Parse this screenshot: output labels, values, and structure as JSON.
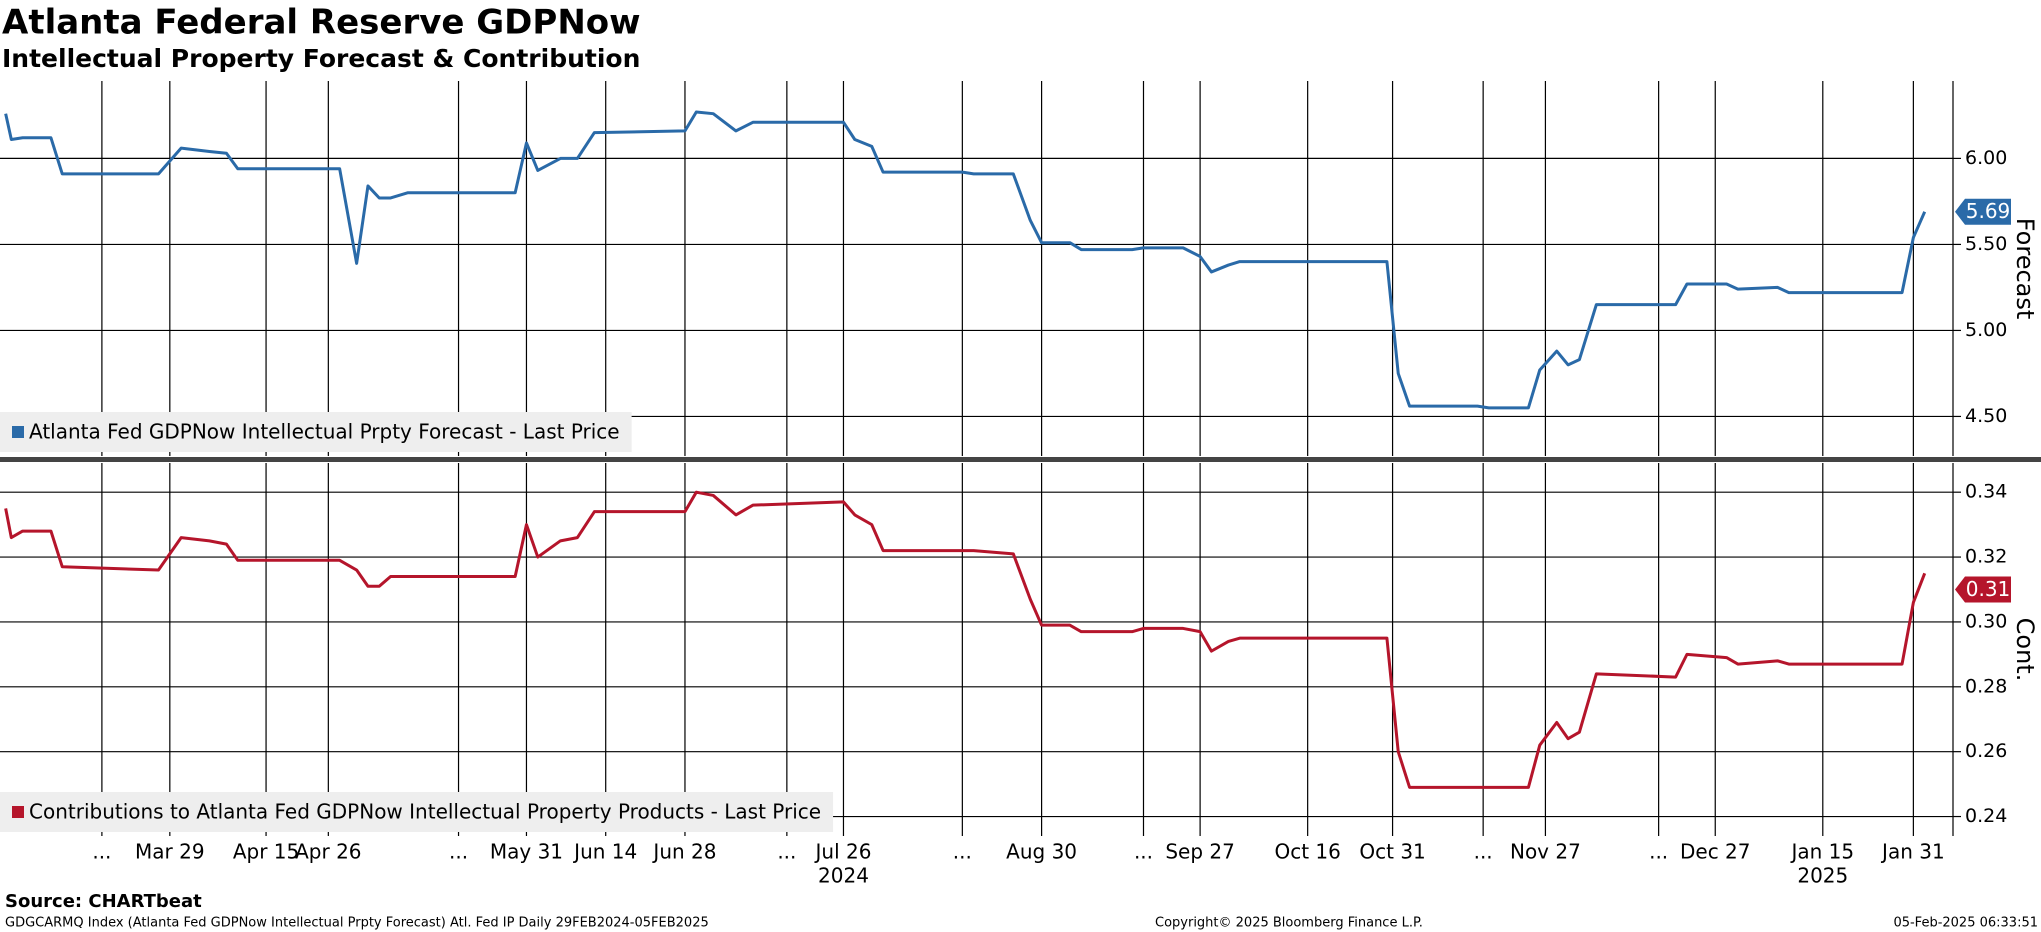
{
  "header": {
    "title": "Atlanta Federal Reserve GDPNow",
    "subtitle": "Intellectual Property Forecast & Contribution"
  },
  "chart_data": [
    {
      "type": "line",
      "ylabel": "Forecast",
      "x": [
        "2024-02-29",
        "2024-03-01",
        "2024-03-03",
        "2024-03-08",
        "2024-03-10",
        "2024-03-27",
        "2024-03-31",
        "2024-04-05",
        "2024-04-08",
        "2024-04-10",
        "2024-04-28",
        "2024-05-01",
        "2024-05-03",
        "2024-05-05",
        "2024-05-07",
        "2024-05-10",
        "2024-05-29",
        "2024-05-31",
        "2024-06-02",
        "2024-06-06",
        "2024-06-09",
        "2024-06-12",
        "2024-06-28",
        "2024-06-30",
        "2024-07-03",
        "2024-07-07",
        "2024-07-10",
        "2024-07-26",
        "2024-07-28",
        "2024-07-31",
        "2024-08-02",
        "2024-08-16",
        "2024-08-18",
        "2024-08-25",
        "2024-08-28",
        "2024-08-30",
        "2024-09-04",
        "2024-09-06",
        "2024-09-15",
        "2024-09-17",
        "2024-09-24",
        "2024-09-27",
        "2024-09-29",
        "2024-10-02",
        "2024-10-04",
        "2024-10-30",
        "2024-11-01",
        "2024-11-03",
        "2024-11-15",
        "2024-11-17",
        "2024-11-24",
        "2024-11-26",
        "2024-11-29",
        "2024-12-01",
        "2024-12-03",
        "2024-12-06",
        "2024-12-20",
        "2024-12-22",
        "2024-12-29",
        "2024-12-31",
        "2025-01-07",
        "2025-01-09",
        "2025-01-29",
        "2025-01-31",
        "2025-02-02"
      ],
      "series": [
        {
          "name": "Atlanta Fed GDPNow Intellectual Prpty Forecast - Last Price",
          "color": "#2a6aa8",
          "values": [
            6.26,
            6.11,
            6.12,
            6.12,
            5.91,
            5.91,
            6.06,
            6.04,
            6.03,
            5.94,
            5.94,
            5.39,
            5.84,
            5.77,
            5.77,
            5.8,
            5.8,
            6.09,
            5.93,
            6.0,
            6.0,
            6.15,
            6.16,
            6.27,
            6.26,
            6.16,
            6.21,
            6.21,
            6.11,
            6.07,
            5.92,
            5.92,
            5.91,
            5.91,
            5.64,
            5.51,
            5.51,
            5.47,
            5.47,
            5.48,
            5.48,
            5.43,
            5.34,
            5.38,
            5.4,
            5.4,
            4.75,
            4.56,
            4.56,
            4.55,
            4.55,
            4.77,
            4.88,
            4.8,
            4.83,
            5.15,
            5.15,
            5.27,
            5.27,
            5.24,
            5.25,
            5.22,
            5.22,
            5.54,
            5.69
          ],
          "last_price": 5.69
        }
      ],
      "xlim": [
        "2024-02-28",
        "2025-02-07"
      ],
      "ylim": [
        4.27,
        6.45
      ],
      "yticks": [
        {
          "value": 4.5,
          "label": "4.50"
        },
        {
          "value": 5,
          "label": "5.00"
        },
        {
          "value": 5.5,
          "label": "5.50"
        },
        {
          "value": 6,
          "label": "6.00"
        }
      ],
      "grid": true
    },
    {
      "type": "line",
      "ylabel": "Cont.",
      "x": [
        "2024-02-29",
        "2024-03-01",
        "2024-03-03",
        "2024-03-08",
        "2024-03-10",
        "2024-03-27",
        "2024-03-31",
        "2024-04-05",
        "2024-04-08",
        "2024-04-10",
        "2024-04-28",
        "2024-05-01",
        "2024-05-03",
        "2024-05-05",
        "2024-05-07",
        "2024-05-10",
        "2024-05-29",
        "2024-05-31",
        "2024-06-02",
        "2024-06-06",
        "2024-06-09",
        "2024-06-12",
        "2024-06-28",
        "2024-06-30",
        "2024-07-03",
        "2024-07-07",
        "2024-07-10",
        "2024-07-26",
        "2024-07-28",
        "2024-07-31",
        "2024-08-02",
        "2024-08-16",
        "2024-08-18",
        "2024-08-25",
        "2024-08-28",
        "2024-08-30",
        "2024-09-04",
        "2024-09-06",
        "2024-09-15",
        "2024-09-17",
        "2024-09-24",
        "2024-09-27",
        "2024-09-29",
        "2024-10-02",
        "2024-10-04",
        "2024-10-30",
        "2024-11-01",
        "2024-11-03",
        "2024-11-15",
        "2024-11-17",
        "2024-11-24",
        "2024-11-26",
        "2024-11-29",
        "2024-12-01",
        "2024-12-03",
        "2024-12-06",
        "2024-12-20",
        "2024-12-22",
        "2024-12-29",
        "2024-12-31",
        "2025-01-07",
        "2025-01-09",
        "2025-01-29",
        "2025-01-31",
        "2025-02-02"
      ],
      "series": [
        {
          "name": "Contributions to Atlanta Fed GDPNow Intellectual Property Products - Last Price",
          "color": "#b5152b",
          "values": [
            0.335,
            0.326,
            0.328,
            0.328,
            0.317,
            0.316,
            0.326,
            0.325,
            0.324,
            0.319,
            0.319,
            0.316,
            0.311,
            0.311,
            0.314,
            0.314,
            0.314,
            0.33,
            0.32,
            0.325,
            0.326,
            0.334,
            0.334,
            0.34,
            0.339,
            0.333,
            0.336,
            0.337,
            0.333,
            0.33,
            0.322,
            0.322,
            0.322,
            0.321,
            0.307,
            0.299,
            0.299,
            0.297,
            0.297,
            0.298,
            0.298,
            0.297,
            0.291,
            0.294,
            0.295,
            0.295,
            0.26,
            0.249,
            0.249,
            0.249,
            0.249,
            0.262,
            0.269,
            0.264,
            0.266,
            0.284,
            0.283,
            0.29,
            0.289,
            0.287,
            0.288,
            0.287,
            0.287,
            0.306,
            0.315
          ],
          "last_price": 0.31
        }
      ],
      "xlim": [
        "2024-02-28",
        "2025-02-07"
      ],
      "xticks": [
        {
          "value": "2024-03-17",
          "label": "..."
        },
        {
          "value": "2024-03-29",
          "label": "Mar 29"
        },
        {
          "value": "2024-04-15",
          "label": "Apr 15"
        },
        {
          "value": "2024-04-26",
          "label": "Apr 26"
        },
        {
          "value": "2024-05-19",
          "label": "..."
        },
        {
          "value": "2024-05-31",
          "label": "May 31"
        },
        {
          "value": "2024-06-14",
          "label": "Jun 14"
        },
        {
          "value": "2024-06-28",
          "label": "Jun 28"
        },
        {
          "value": "2024-07-16",
          "label": "..."
        },
        {
          "value": "2024-07-26",
          "label": "Jul 26"
        },
        {
          "value": "2024-08-16",
          "label": "..."
        },
        {
          "value": "2024-08-30",
          "label": "Aug 30"
        },
        {
          "value": "2024-09-17",
          "label": "..."
        },
        {
          "value": "2024-09-27",
          "label": "Sep 27"
        },
        {
          "value": "2024-10-16",
          "label": "Oct 16"
        },
        {
          "value": "2024-10-31",
          "label": "Oct 31"
        },
        {
          "value": "2024-11-16",
          "label": "..."
        },
        {
          "value": "2024-11-27",
          "label": "Nov 27"
        },
        {
          "value": "2024-12-17",
          "label": "..."
        },
        {
          "value": "2024-12-27",
          "label": "Dec 27"
        },
        {
          "value": "2025-01-15",
          "label": "Jan 15"
        },
        {
          "value": "2025-01-31",
          "label": "Jan 31"
        }
      ],
      "year_labels": [
        {
          "value": "2024-07-26",
          "label": "2024"
        },
        {
          "value": "2025-01-15",
          "label": "2025"
        }
      ],
      "ylim": [
        0.234,
        0.349
      ],
      "yticks": [
        0.24,
        0.26,
        0.28,
        {
          "value": 0.3,
          "label": "0.30"
        },
        0.32,
        0.34
      ],
      "grid": true
    }
  ],
  "footer": {
    "source": "Source: CHARTbeat",
    "ticker": "GDGCARMQ Index (Atlanta Fed GDPNow Intellectual Prpty Forecast) Atl. Fed IP  Daily 29FEB2024-05FEB2025",
    "copyright": "Copyright© 2025 Bloomberg Finance L.P.",
    "timestamp": "05-Feb-2025 06:33:51"
  }
}
